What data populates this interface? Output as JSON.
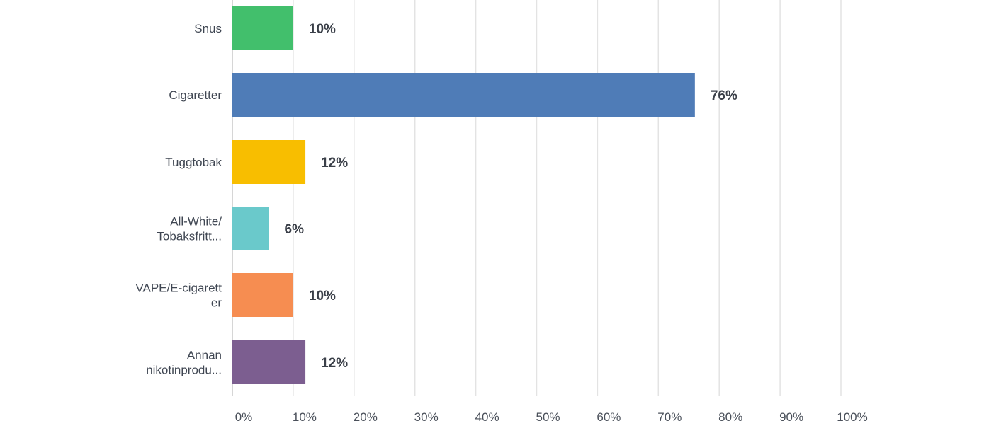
{
  "chart_data": {
    "type": "bar",
    "orientation": "horizontal",
    "categories": [
      [
        "Snus"
      ],
      [
        "Cigaretter"
      ],
      [
        "Tuggtobak"
      ],
      [
        "All-White/",
        "Tobaksfritt..."
      ],
      [
        "VAPE/E-cigarett",
        "er"
      ],
      [
        "Annan",
        "nikotinprodu..."
      ]
    ],
    "values": [
      10,
      76,
      12,
      6,
      10,
      12
    ],
    "value_labels": [
      "10%",
      "76%",
      "12%",
      "6%",
      "10%",
      "12%"
    ],
    "colors": [
      "#42bf6c",
      "#4f7cb7",
      "#f8be00",
      "#6ac9cb",
      "#f68d51",
      "#7c5e90"
    ],
    "xlim": [
      0,
      100
    ],
    "x_ticks": [
      "0%",
      "10%",
      "20%",
      "30%",
      "40%",
      "50%",
      "60%",
      "70%",
      "80%",
      "90%",
      "100%"
    ],
    "grid": true
  }
}
